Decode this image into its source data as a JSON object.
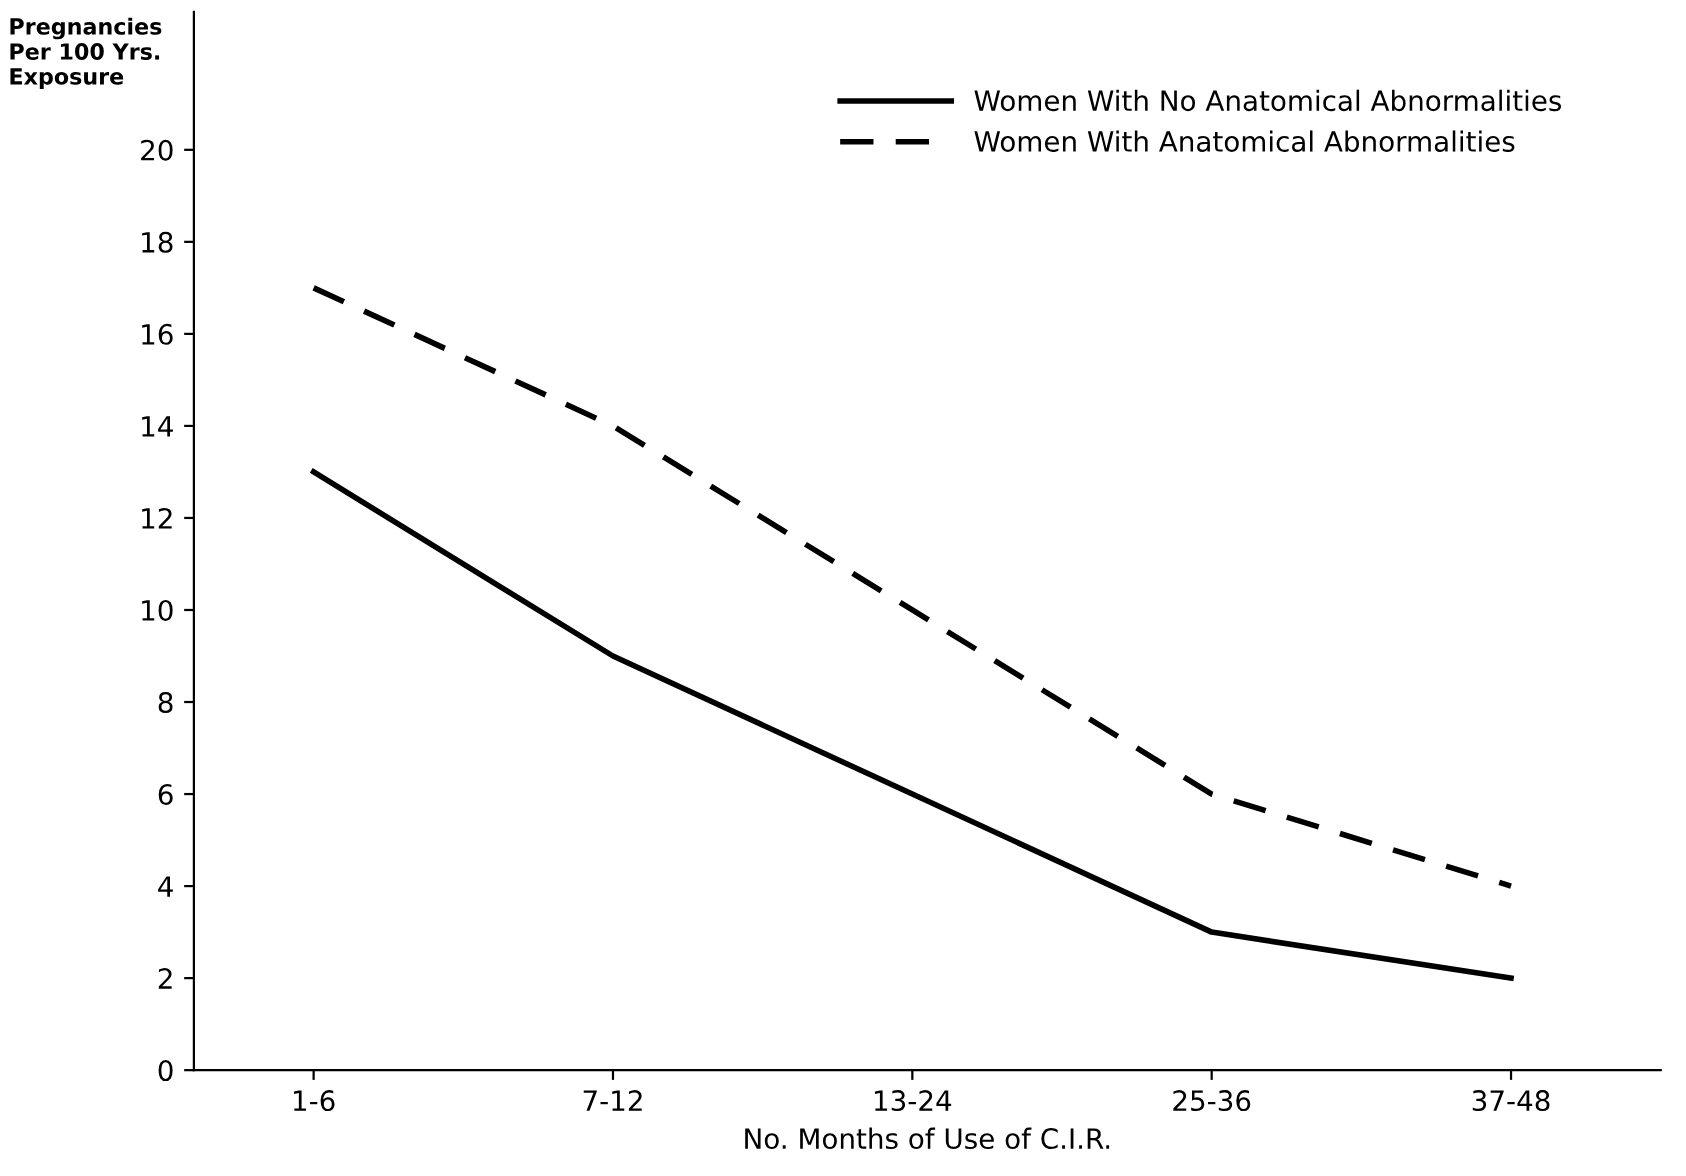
{
  "chart_data": {
    "type": "line",
    "ylabel": "Pregnancies\nPer 100 Yrs.\nExposure",
    "xlabel": "No. Months of Use of C.I.R.",
    "categories": [
      "1-6",
      "7-12",
      "13-24",
      "25-36",
      "37-48"
    ],
    "series": [
      {
        "name": "Women With No Anatomical Abnormalities",
        "color": "#000000",
        "line_style": "solid",
        "values": [
          13,
          9,
          6,
          3,
          2
        ]
      },
      {
        "name": "Women With Anatomical Abnormalities",
        "color": "#000000",
        "line_style": "dashed",
        "values": [
          17,
          14,
          10,
          6,
          4
        ]
      }
    ],
    "ylim": [
      0,
      23
    ],
    "yticks": [
      0,
      2,
      4,
      6,
      8,
      10,
      12,
      14,
      16,
      18,
      20
    ],
    "grid": false,
    "legend": "top right",
    "marker": "none"
  }
}
